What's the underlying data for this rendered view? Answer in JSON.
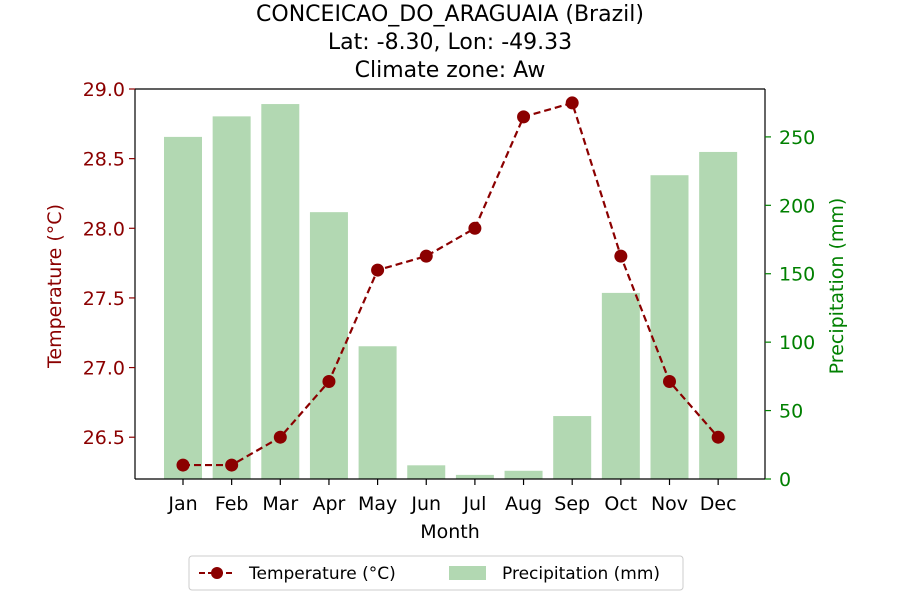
{
  "chart_data": {
    "type": "bar+line",
    "title": [
      "CONCEICAO_DO_ARAGUAIA (Brazil)",
      "Lat: -8.30, Lon: -49.33",
      "Climate zone: Aw"
    ],
    "xlabel": "Month",
    "categories": [
      "Jan",
      "Feb",
      "Mar",
      "Apr",
      "May",
      "Jun",
      "Jul",
      "Aug",
      "Sep",
      "Oct",
      "Nov",
      "Dec"
    ],
    "temperature": {
      "name": "Temperature (°C)",
      "axis_label": "Temperature (°C)",
      "values": [
        26.3,
        26.3,
        26.5,
        26.9,
        27.7,
        27.8,
        28.0,
        28.8,
        28.9,
        27.8,
        26.9,
        26.5
      ],
      "ylim": [
        26.2,
        29.0
      ],
      "ticks": [
        "26.5",
        "27.0",
        "27.5",
        "28.0",
        "28.5",
        "29.0"
      ],
      "color": "#8b0000",
      "style": "dashed line with circle markers"
    },
    "precipitation": {
      "name": "Precipitation (mm)",
      "axis_label": "Precipitation (mm)",
      "values": [
        250,
        265,
        274,
        195,
        97,
        10,
        3,
        6,
        46,
        136,
        222,
        239
      ],
      "ylim": [
        0,
        285
      ],
      "ticks": [
        "0",
        "50",
        "100",
        "150",
        "200",
        "250"
      ],
      "color": "#b2d8b2"
    },
    "legend_position": "bottom-center",
    "grid": false
  }
}
